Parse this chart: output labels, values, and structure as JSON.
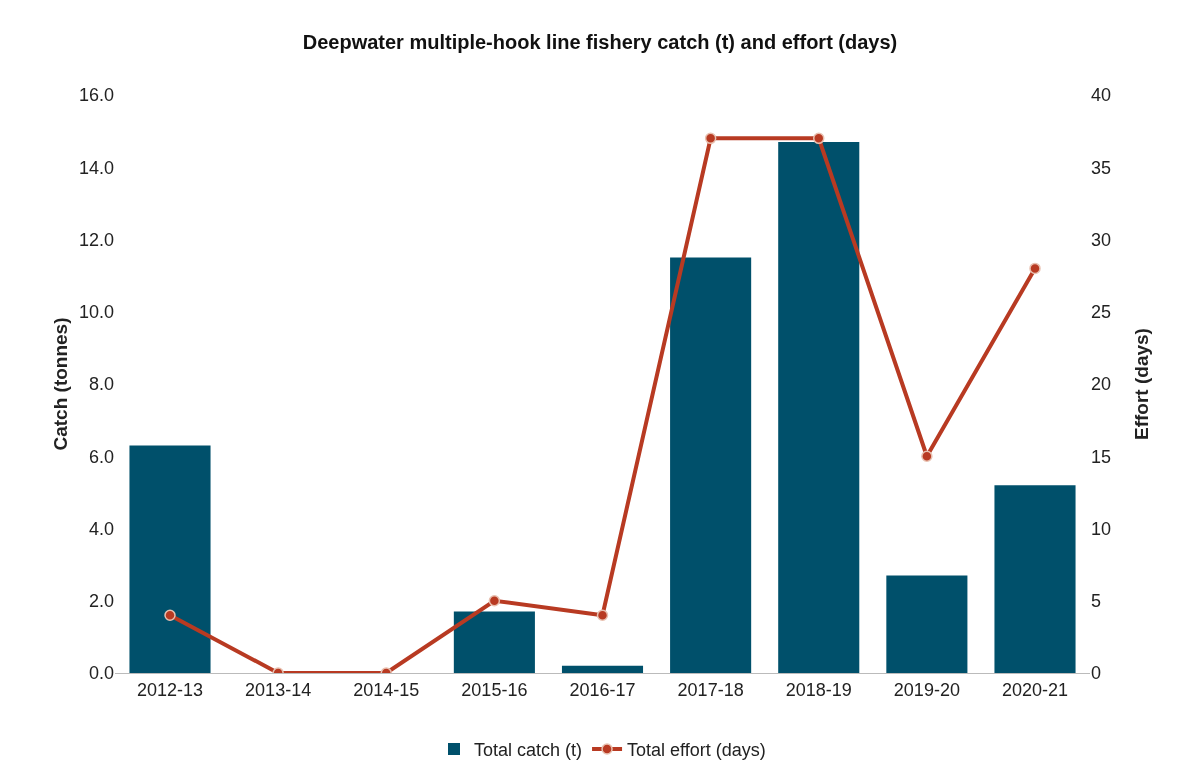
{
  "chart_data": {
    "type": "bar",
    "title": "Deepwater multiple-hook line fishery catch (t) and effort (days)",
    "ylabel": "Catch (tonnes)",
    "y2label": "Effort (days)",
    "categories": [
      "2012-13",
      "2013-14",
      "2014-15",
      "2015-16",
      "2016-17",
      "2017-18",
      "2018-19",
      "2019-20",
      "2020-21"
    ],
    "series": [
      {
        "name": "Total catch (t)",
        "color": "#00506b",
        "values": [
          6.3,
          0,
          0,
          1.7,
          0.2,
          11.5,
          14.7,
          2.7,
          5.2
        ]
      },
      {
        "name": "Total effort (days)",
        "type": "line",
        "axis": "y2",
        "color": "#b83a22",
        "marker": "circle",
        "values": [
          4,
          0,
          0,
          5,
          4,
          37,
          37,
          15,
          28
        ]
      }
    ],
    "ylim": [
      0,
      16
    ],
    "yticks": [
      {
        "value": 0,
        "label": "0.0"
      },
      {
        "value": 2,
        "label": "2.0"
      },
      {
        "value": 4,
        "label": "4.0"
      },
      {
        "value": 6,
        "label": "6.0"
      },
      {
        "value": 8,
        "label": "8.0"
      },
      {
        "value": 10,
        "label": "10.0"
      },
      {
        "value": 12,
        "label": "12.0"
      },
      {
        "value": 14,
        "label": "14.0"
      },
      {
        "value": 16,
        "label": "16.0"
      }
    ],
    "y2lim": [
      0,
      40
    ],
    "y2ticks": [
      0,
      5,
      10,
      15,
      20,
      25,
      30,
      35,
      40
    ],
    "grid": false,
    "legend": "bottom"
  }
}
